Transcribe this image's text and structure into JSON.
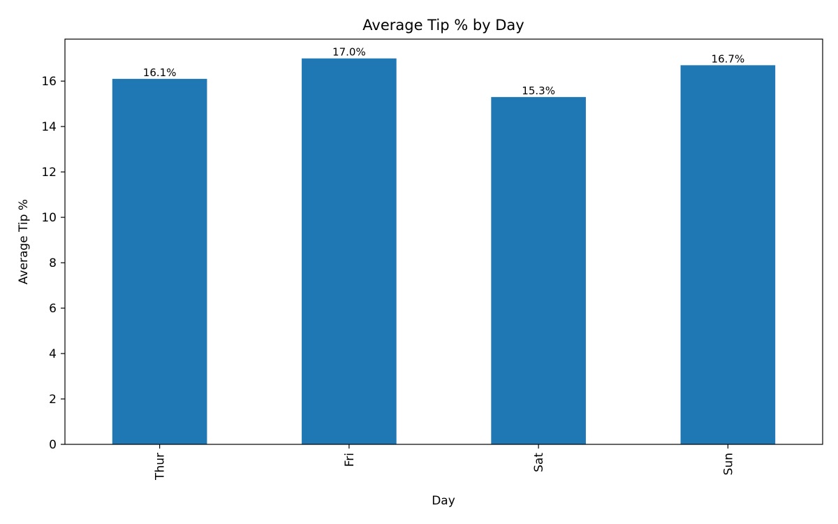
{
  "chart_data": {
    "type": "bar",
    "title": "Average Tip % by Day",
    "xlabel": "Day",
    "ylabel": "Average Tip %",
    "categories": [
      "Thur",
      "Fri",
      "Sat",
      "Sun"
    ],
    "values": [
      16.1,
      17.0,
      15.3,
      16.7
    ],
    "value_labels": [
      "16.1%",
      "17.0%",
      "15.3%",
      "16.7%"
    ],
    "ylim": [
      0,
      17.85
    ],
    "yticks": [
      0,
      2,
      4,
      6,
      8,
      10,
      12,
      14,
      16
    ],
    "grid": false,
    "legend": "none",
    "bar_color": "#1f77b4"
  }
}
